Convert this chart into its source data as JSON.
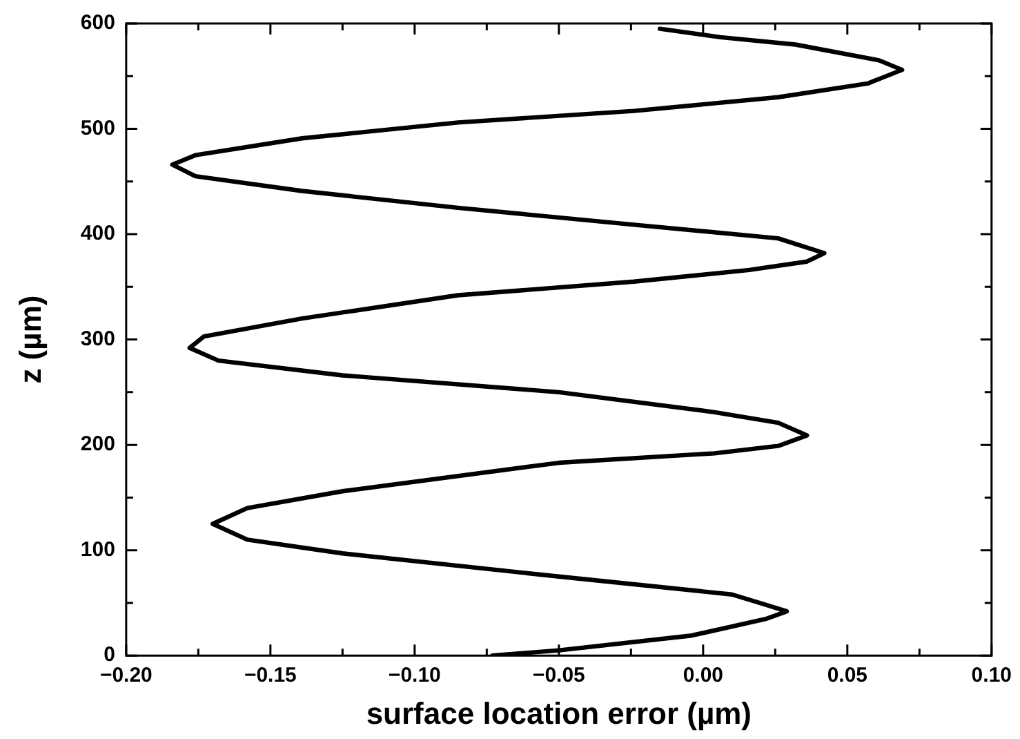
{
  "chart_data": {
    "type": "line",
    "xlabel": "surface location error (µm)",
    "ylabel": "z (µm)",
    "marker": "none",
    "line_style": "solid",
    "xlim": [
      -0.2,
      0.1
    ],
    "ylim": [
      0,
      600
    ],
    "xticks": [
      {
        "value": -0.2,
        "label": "−0.20"
      },
      {
        "value": -0.175,
        "label": null
      },
      {
        "value": -0.15,
        "label": "−0.15"
      },
      {
        "value": -0.125,
        "label": null
      },
      {
        "value": -0.1,
        "label": "−0.10"
      },
      {
        "value": -0.075,
        "label": null
      },
      {
        "value": -0.05,
        "label": "−0.05"
      },
      {
        "value": -0.025,
        "label": null
      },
      {
        "value": 0,
        "label": "0.00"
      },
      {
        "value": 0.025,
        "label": null
      },
      {
        "value": 0.05,
        "label": "0.05"
      },
      {
        "value": 0.075,
        "label": null
      },
      {
        "value": 0.1,
        "label": "0.10"
      }
    ],
    "yticks": [
      0,
      {
        "value": 50,
        "label": null
      },
      100,
      {
        "value": 150,
        "label": null
      },
      200,
      {
        "value": 250,
        "label": null
      },
      300,
      {
        "value": 350,
        "label": null
      },
      400,
      {
        "value": 450,
        "label": null
      },
      500,
      {
        "value": 550,
        "label": null
      },
      600
    ],
    "series": [
      {
        "color": "#000000",
        "x": [
          -0.073,
          -0.05,
          -0.004,
          0.022,
          0.029,
          0.022,
          0.01,
          -0.05,
          -0.125,
          -0.158,
          -0.17,
          -0.158,
          -0.125,
          -0.05,
          0.004,
          0.026,
          0.036,
          0.026,
          0.004,
          -0.05,
          -0.125,
          -0.168,
          -0.178,
          -0.173,
          -0.139,
          -0.085,
          -0.024,
          0.016,
          0.036,
          0.042,
          0.026,
          -0.024,
          -0.085,
          -0.139,
          -0.176,
          -0.184,
          -0.176,
          -0.139,
          -0.085,
          -0.024,
          0.026,
          0.057,
          0.069,
          0.061,
          0.032,
          0.006,
          -0.015
        ],
        "values": [
          0,
          5,
          19,
          35,
          42,
          48,
          58,
          75,
          97,
          110,
          125,
          140,
          156,
          183,
          192,
          199,
          209,
          221,
          231,
          250,
          266,
          280,
          292,
          303,
          320,
          342,
          355,
          366,
          374,
          382,
          396,
          409,
          425,
          441,
          455,
          466,
          475,
          491,
          506,
          517,
          530,
          543,
          556,
          565,
          580,
          587,
          595
        ]
      }
    ]
  }
}
